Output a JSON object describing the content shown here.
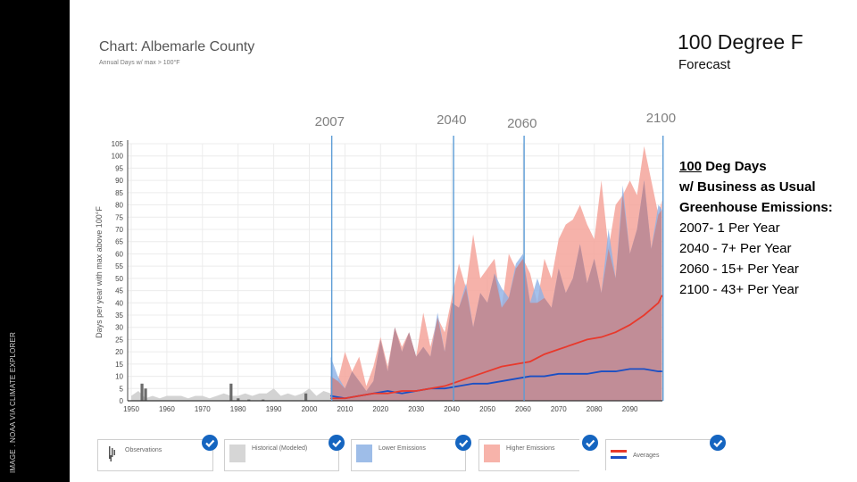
{
  "sidebar": {
    "credit": "IMAGE . NOAA VIA CLIMATE EXPLORER"
  },
  "header": {
    "chart_title": "Chart: Albemarle County",
    "chart_subtitle": "Annual Days w/ max > 100°F",
    "slide_title": "100 Degree F",
    "slide_subtitle": "Forecast"
  },
  "notes": {
    "heading_num": "100",
    "heading_rest": " Deg Days",
    "line2": "w/ Business as Usual",
    "line3": "Greenhouse Emissions:",
    "items": [
      "2007- 1 Per Year",
      "2040 - 7+ Per Year",
      "2060 - 15+ Per Year",
      "2100 - 43+ Per Year"
    ]
  },
  "markers": [
    {
      "label": "2007",
      "year": 2006.3
    },
    {
      "label": "2040",
      "year": 2040.5
    },
    {
      "label": "2060",
      "year": 2060.3
    },
    {
      "label": "2100",
      "year": 2099.3
    }
  ],
  "legend": [
    {
      "label": "Observations",
      "icon": "observations-bars-icon",
      "checked": true
    },
    {
      "label": "Historical (Modeled)",
      "color": "#d6d6d6",
      "checked": true
    },
    {
      "label": "Lower Emissions",
      "color": "#9ebde8",
      "checked": true
    },
    {
      "label": "Higher Emissions",
      "color": "#f7b3aa",
      "checked": true
    },
    {
      "label": "Averages",
      "icon": "averages-lines-icon",
      "checked": true
    }
  ],
  "colors": {
    "historical": "#d3d3d3",
    "observations": "#6b6b6b",
    "lower_band": "#8fb2e6",
    "higher_band": "#f5a59b",
    "overlap": "#c38b93",
    "lower_avg": "#1a4fc4",
    "higher_avg": "#e8392c",
    "marker_line": "#5b9bd5",
    "check": "#1565c0"
  },
  "chart_data": {
    "type": "area",
    "title": "Chart: Albemarle County",
    "subtitle": "Annual Days w/ max > 100°F",
    "xlabel": "",
    "ylabel": "Days per year with max above 100°F",
    "xlim": [
      1950,
      2099
    ],
    "ylim": [
      0,
      105
    ],
    "x_ticks": [
      1950,
      1960,
      1970,
      1980,
      1990,
      2000,
      2010,
      2020,
      2030,
      2040,
      2050,
      2060,
      2070,
      2080,
      2090
    ],
    "y_ticks": [
      0,
      5,
      10,
      15,
      20,
      25,
      30,
      35,
      40,
      45,
      50,
      55,
      60,
      65,
      70,
      75,
      80,
      85,
      90,
      95,
      100,
      105
    ],
    "grid": true,
    "legend_position": "bottom",
    "historical_modeled": {
      "x": [
        1950,
        1952,
        1954,
        1956,
        1958,
        1960,
        1962,
        1964,
        1966,
        1968,
        1970,
        1972,
        1974,
        1976,
        1978,
        1980,
        1982,
        1984,
        1986,
        1988,
        1990,
        1992,
        1994,
        1996,
        1998,
        2000,
        2002,
        2004,
        2006
      ],
      "values": [
        2,
        4,
        1,
        2,
        1,
        2,
        2,
        2,
        1,
        2,
        2,
        1,
        2,
        3,
        2,
        2,
        3,
        2,
        3,
        3,
        5,
        2,
        3,
        2,
        3,
        5,
        2,
        4,
        3
      ]
    },
    "observations": {
      "x": [
        1953,
        1954,
        1978,
        1980,
        1983,
        1987,
        1999
      ],
      "values": [
        7,
        5,
        7,
        1,
        0.5,
        0.5,
        3
      ]
    },
    "lower_emissions_band": {
      "x": [
        2006,
        2008,
        2010,
        2012,
        2014,
        2016,
        2018,
        2020,
        2022,
        2024,
        2026,
        2028,
        2030,
        2032,
        2034,
        2036,
        2038,
        2040,
        2042,
        2044,
        2046,
        2048,
        2050,
        2052,
        2054,
        2056,
        2058,
        2060,
        2062,
        2064,
        2066,
        2068,
        2070,
        2072,
        2074,
        2076,
        2078,
        2080,
        2082,
        2084,
        2086,
        2088,
        2090,
        2092,
        2094,
        2096,
        2098,
        2099
      ],
      "values": [
        18,
        10,
        5,
        12,
        8,
        4,
        8,
        25,
        12,
        30,
        20,
        28,
        18,
        22,
        18,
        36,
        20,
        40,
        38,
        48,
        30,
        44,
        40,
        52,
        46,
        42,
        56,
        60,
        40,
        50,
        42,
        38,
        54,
        44,
        50,
        64,
        48,
        58,
        44,
        70,
        50,
        88,
        60,
        70,
        90,
        62,
        80,
        78
      ]
    },
    "higher_emissions_band": {
      "x": [
        2006,
        2008,
        2010,
        2012,
        2014,
        2016,
        2018,
        2020,
        2022,
        2024,
        2026,
        2028,
        2030,
        2032,
        2034,
        2036,
        2038,
        2040,
        2042,
        2044,
        2046,
        2048,
        2050,
        2052,
        2054,
        2056,
        2058,
        2060,
        2062,
        2064,
        2066,
        2068,
        2070,
        2072,
        2074,
        2076,
        2078,
        2080,
        2082,
        2084,
        2086,
        2088,
        2090,
        2092,
        2094,
        2096,
        2098,
        2099
      ],
      "values": [
        10,
        8,
        20,
        12,
        18,
        6,
        14,
        26,
        14,
        30,
        22,
        28,
        18,
        36,
        22,
        34,
        28,
        42,
        56,
        46,
        68,
        50,
        54,
        58,
        38,
        60,
        54,
        58,
        52,
        40,
        58,
        50,
        66,
        72,
        74,
        80,
        72,
        66,
        90,
        62,
        80,
        84,
        90,
        84,
        104,
        90,
        76,
        82
      ]
    },
    "lower_emissions_average": {
      "x": [
        2006,
        2010,
        2014,
        2018,
        2022,
        2026,
        2030,
        2034,
        2038,
        2042,
        2046,
        2050,
        2054,
        2058,
        2062,
        2066,
        2070,
        2074,
        2078,
        2082,
        2086,
        2090,
        2094,
        2098,
        2099
      ],
      "values": [
        2,
        1,
        2,
        3,
        4,
        3,
        4,
        5,
        5,
        6,
        7,
        7,
        8,
        9,
        10,
        10,
        11,
        11,
        11,
        12,
        12,
        13,
        13,
        12,
        12
      ]
    },
    "higher_emissions_average": {
      "x": [
        2006,
        2010,
        2014,
        2018,
        2022,
        2026,
        2030,
        2034,
        2038,
        2042,
        2046,
        2050,
        2054,
        2058,
        2062,
        2066,
        2070,
        2074,
        2078,
        2082,
        2086,
        2090,
        2094,
        2098,
        2099
      ],
      "values": [
        1,
        1,
        2,
        3,
        3,
        4,
        4,
        5,
        6,
        8,
        10,
        12,
        14,
        15,
        16,
        19,
        21,
        23,
        25,
        26,
        28,
        31,
        35,
        40,
        43
      ]
    }
  }
}
